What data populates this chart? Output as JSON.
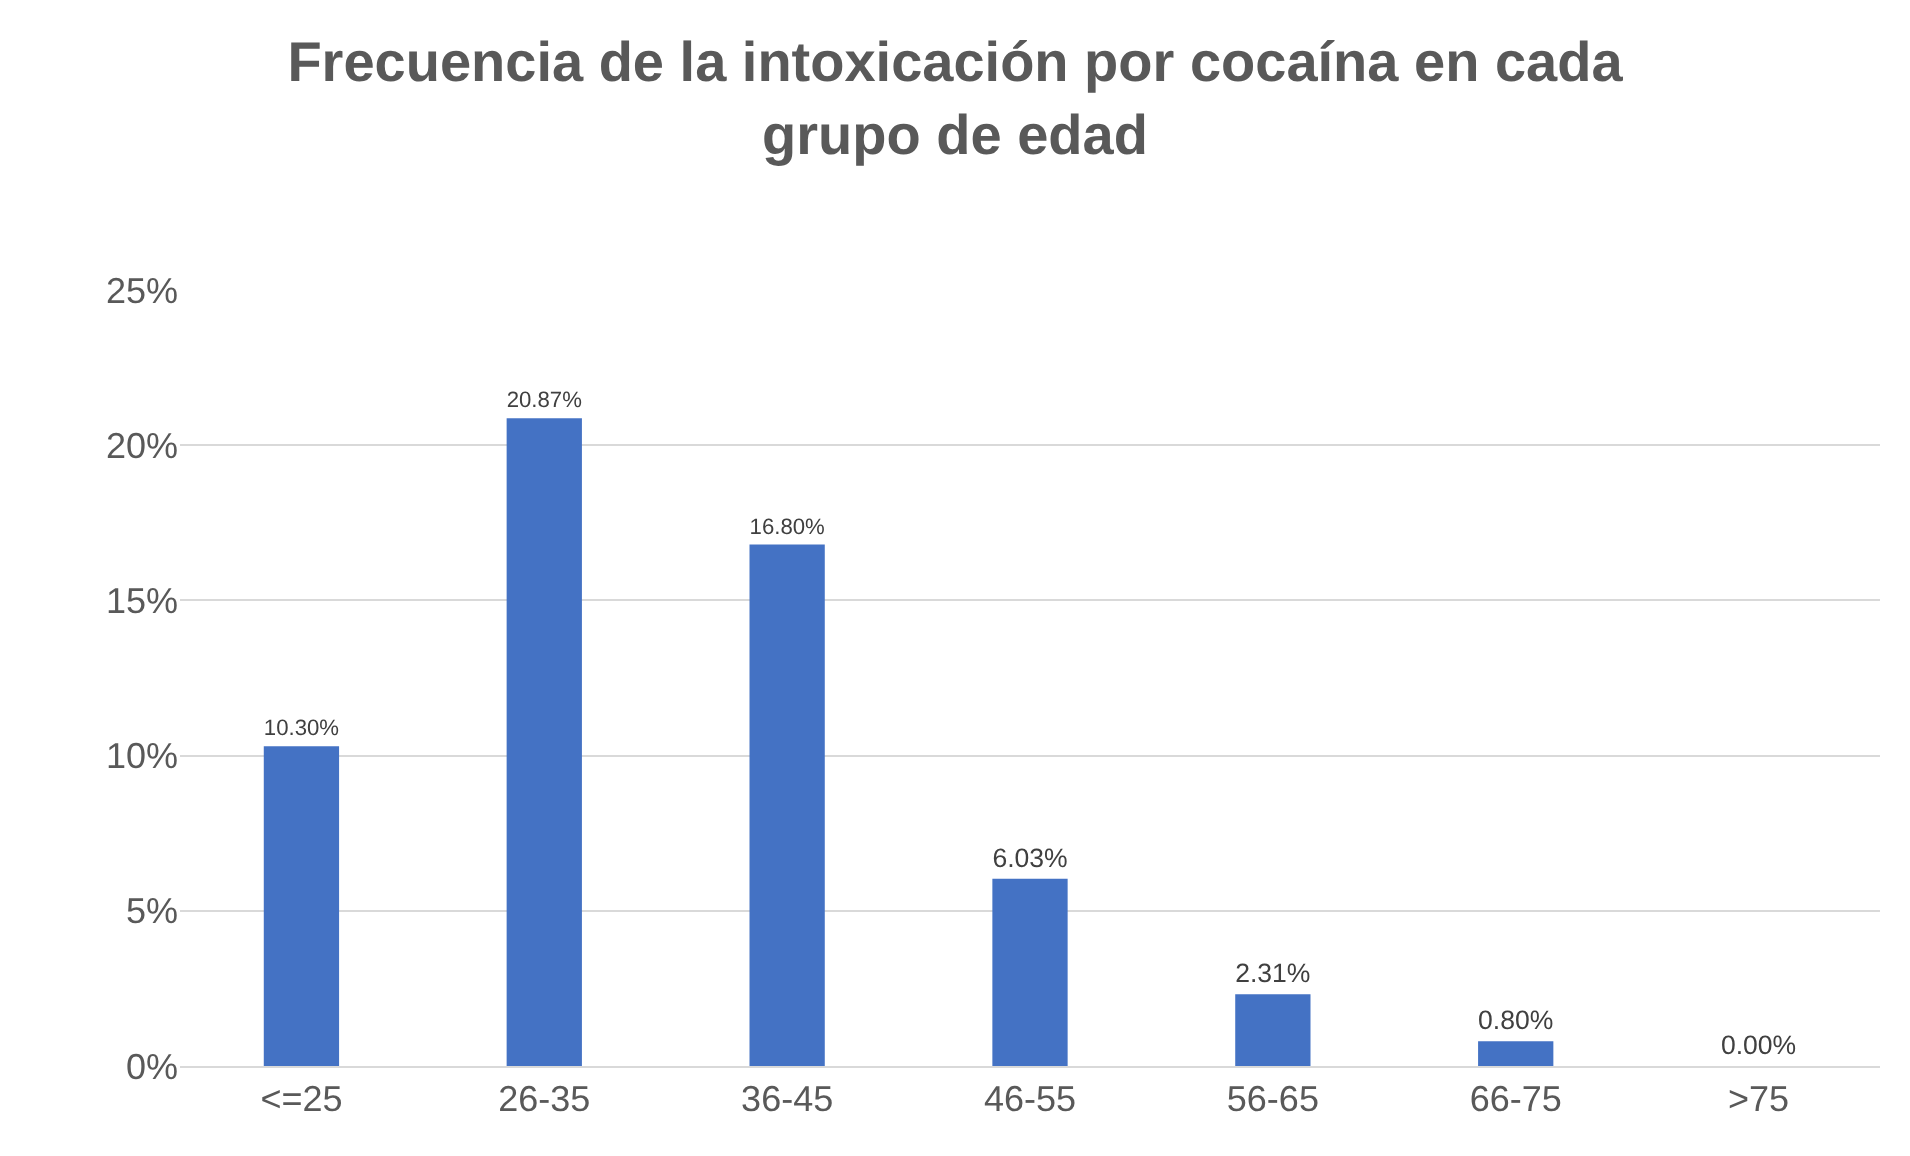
{
  "chart_data": {
    "type": "bar",
    "title": "Frecuencia de la intoxicación por cocaína en cada\ngrupo de edad",
    "categories": [
      "<=25",
      "26-35",
      "36-45",
      "46-55",
      "56-65",
      "66-75",
      ">75"
    ],
    "values": [
      10.3,
      20.87,
      16.8,
      6.03,
      2.31,
      0.8,
      0.0
    ],
    "value_labels": [
      "10.30%",
      "20.87%",
      "16.80%",
      "6.03%",
      "2.31%",
      "0.80%",
      "0.00%"
    ],
    "color": "#4472c4",
    "ylim": [
      0,
      25
    ],
    "yticks": [
      {
        "value": 0,
        "label": "0%"
      },
      {
        "value": 5,
        "label": "5%"
      },
      {
        "value": 10,
        "label": "10%"
      },
      {
        "value": 15,
        "label": "15%"
      },
      {
        "value": 20,
        "label": "20%"
      },
      {
        "value": 25,
        "label": "25%"
      }
    ],
    "grid": "y",
    "legend": false
  }
}
